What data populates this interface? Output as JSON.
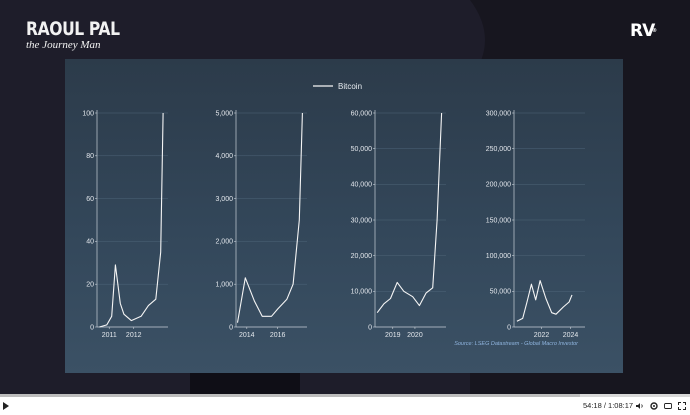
{
  "branding": {
    "name": "RAOUL PAL",
    "subtitle": "the Journey Man",
    "logo": "RV",
    "logo_mark": "®"
  },
  "slide": {
    "legend_label": "Bitcoin",
    "source": "Source: LSEG Datastream - Global Macro Investor",
    "line_color": "#f5f5f5"
  },
  "chart_data": [
    {
      "type": "line",
      "series": [
        {
          "name": "Bitcoin",
          "x": [
            2010.6,
            2010.9,
            2011.1,
            2011.25,
            2011.45,
            2011.6,
            2011.9,
            2012.3,
            2012.6,
            2012.9,
            2013.1,
            2013.2
          ],
          "y": [
            0,
            1,
            5,
            29,
            11,
            6,
            3,
            5,
            10,
            13,
            35,
            100
          ]
        }
      ],
      "xticks": [
        "2011",
        "2012"
      ],
      "yticks": [
        "0",
        "20",
        "40",
        "60",
        "80",
        "100"
      ],
      "ylim": [
        0,
        100
      ]
    },
    {
      "type": "line",
      "series": [
        {
          "name": "Bitcoin",
          "x": [
            2013.4,
            2013.9,
            2014.5,
            2015.0,
            2015.6,
            2016.0,
            2016.6,
            2017.0,
            2017.4,
            2017.6
          ],
          "y": [
            100,
            1150,
            600,
            250,
            250,
            420,
            650,
            1000,
            2500,
            5000
          ]
        }
      ],
      "xticks": [
        "2014",
        "2016"
      ],
      "yticks": [
        "0",
        "1,000",
        "2,000",
        "3,000",
        "4,000",
        "5,000"
      ],
      "ylim": [
        0,
        5000
      ]
    },
    {
      "type": "line",
      "series": [
        {
          "name": "Bitcoin",
          "x": [
            2018.3,
            2018.6,
            2018.9,
            2019.2,
            2019.5,
            2019.9,
            2020.2,
            2020.5,
            2020.8,
            2021.0,
            2021.2
          ],
          "y": [
            4000,
            6500,
            8000,
            12500,
            10000,
            8500,
            6000,
            9500,
            11000,
            30000,
            60000
          ]
        }
      ],
      "xticks": [
        "2019",
        "2020"
      ],
      "yticks": [
        "0",
        "10,000",
        "20,000",
        "30,000",
        "40,000",
        "50,000",
        "60,000"
      ],
      "ylim": [
        0,
        60000
      ]
    },
    {
      "type": "line",
      "series": [
        {
          "name": "Bitcoin",
          "x": [
            2020.3,
            2020.7,
            2021.0,
            2021.3,
            2021.6,
            2021.9,
            2022.3,
            2022.7,
            2023.0,
            2023.5,
            2023.9,
            2024.1
          ],
          "y": [
            8000,
            12000,
            35000,
            60000,
            38000,
            65000,
            40000,
            20000,
            18000,
            28000,
            35000,
            45000
          ]
        }
      ],
      "xticks": [
        "2022",
        "2024"
      ],
      "yticks": [
        "0",
        "50,000",
        "100,000",
        "150,000",
        "200,000",
        "250,000",
        "300,000"
      ],
      "ylim": [
        0,
        300000
      ]
    }
  ],
  "player": {
    "progress_fraction": 0.84,
    "time": "54:18 / 1:08:17",
    "icons": [
      "play-icon",
      "volume-icon",
      "settings-icon",
      "captions-icon",
      "miniplayer-icon",
      "fullscreen-icon"
    ]
  }
}
